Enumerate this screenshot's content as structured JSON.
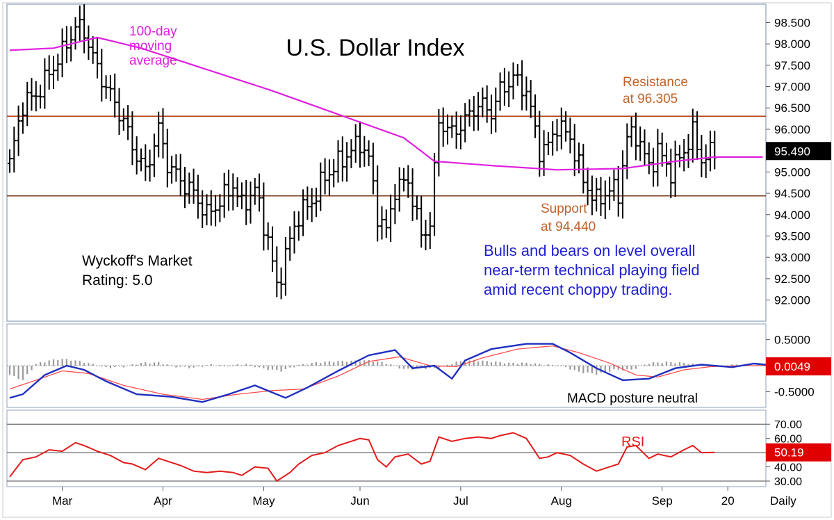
{
  "chart_data": [
    {
      "type": "ohlc",
      "title": "U.S. Dollar Index",
      "ylim": [
        91.7,
        98.8
      ],
      "yticks": [
        "98.500",
        "98.000",
        "97.500",
        "97.000",
        "96.500",
        "96.000",
        "95.500",
        "95.000",
        "94.500",
        "94.000",
        "93.500",
        "93.000",
        "92.500",
        "92.000"
      ],
      "ytick_values": [
        98.5,
        98.0,
        97.5,
        97.0,
        96.5,
        96.0,
        95.5,
        95.0,
        94.5,
        94.0,
        93.5,
        93.0,
        92.5,
        92.0
      ],
      "last_value": 95.49,
      "last_value_label": "95.490",
      "resistance": 96.305,
      "resistance_label": "Resistance\nat 96.305",
      "support": 94.44,
      "support_label": "Support\nat 94.440",
      "ma_label": "100-day\nmoving\naverage",
      "rating_label": "Wyckoff's Market\nRating: 5.0",
      "comment": "Bulls and bears on level overall\nnear-term technical playing field\namid recent choppy trading.",
      "close_anchors": [
        [
          0,
          95.2
        ],
        [
          3,
          96.6
        ],
        [
          6,
          96.8
        ],
        [
          9,
          97.3
        ],
        [
          12,
          97.8
        ],
        [
          15,
          98.4
        ],
        [
          17,
          98.3
        ],
        [
          20,
          97.4
        ],
        [
          23,
          96.8
        ],
        [
          26,
          96.2
        ],
        [
          28,
          95.6
        ],
        [
          31,
          95.0
        ],
        [
          34,
          96.0
        ],
        [
          36,
          95.2
        ],
        [
          39,
          94.8
        ],
        [
          42,
          94.5
        ],
        [
          45,
          94.0
        ],
        [
          48,
          94.3
        ],
        [
          51,
          94.7
        ],
        [
          53,
          94.2
        ],
        [
          56,
          94.6
        ],
        [
          59,
          93.4
        ],
        [
          61,
          92.3
        ],
        [
          64,
          93.4
        ],
        [
          66,
          94.0
        ],
        [
          69,
          94.3
        ],
        [
          72,
          94.9
        ],
        [
          75,
          95.2
        ],
        [
          78,
          95.5
        ],
        [
          80,
          95.7
        ],
        [
          82,
          95.3
        ],
        [
          84,
          94.0
        ],
        [
          86,
          93.6
        ],
        [
          88,
          94.6
        ],
        [
          91,
          94.8
        ],
        [
          94,
          93.5
        ],
        [
          96,
          93.8
        ],
        [
          98,
          96.2
        ],
        [
          101,
          95.9
        ],
        [
          104,
          96.2
        ],
        [
          107,
          96.6
        ],
        [
          110,
          96.4
        ],
        [
          112,
          96.9
        ],
        [
          115,
          97.2
        ],
        [
          118,
          96.9
        ],
        [
          121,
          95.5
        ],
        [
          123,
          95.6
        ],
        [
          125,
          96.1
        ],
        [
          128,
          95.8
        ],
        [
          131,
          94.8
        ],
        [
          134,
          94.3
        ],
        [
          137,
          94.6
        ],
        [
          139,
          94.5
        ],
        [
          141,
          95.8
        ],
        [
          143,
          95.9
        ],
        [
          146,
          95.1
        ],
        [
          148,
          95.5
        ],
        [
          151,
          95.0
        ],
        [
          154,
          95.5
        ],
        [
          156,
          95.9
        ],
        [
          158,
          95.3
        ],
        [
          161,
          95.49
        ]
      ],
      "ma_anchors": [
        [
          0,
          97.85
        ],
        [
          10,
          97.9
        ],
        [
          20,
          98.15
        ],
        [
          30,
          97.9
        ],
        [
          45,
          97.4
        ],
        [
          60,
          96.9
        ],
        [
          75,
          96.35
        ],
        [
          90,
          95.8
        ],
        [
          97,
          95.25
        ],
        [
          110,
          95.15
        ],
        [
          125,
          95.05
        ],
        [
          140,
          95.08
        ],
        [
          152,
          95.25
        ],
        [
          161,
          95.35
        ]
      ],
      "bar_count": 162
    },
    {
      "type": "line",
      "name": "MACD",
      "ylim": [
        -0.75,
        0.75
      ],
      "yticks": [
        "0.5000",
        "-0.5000"
      ],
      "ytick_values": [
        0.5,
        -0.5
      ],
      "last_value_label": "0.0049",
      "annotation": "MACD posture neutral",
      "series": [
        {
          "role": "macd",
          "color": "#1f2fbf",
          "points": [
            [
              0,
              -0.62
            ],
            [
              3,
              -0.55
            ],
            [
              8,
              -0.18
            ],
            [
              13,
              0.0
            ],
            [
              17,
              -0.08
            ],
            [
              22,
              -0.3
            ],
            [
              29,
              -0.55
            ],
            [
              37,
              -0.6
            ],
            [
              44,
              -0.7
            ],
            [
              50,
              -0.55
            ],
            [
              56,
              -0.38
            ],
            [
              63,
              -0.62
            ],
            [
              68,
              -0.42
            ],
            [
              75,
              -0.1
            ],
            [
              82,
              0.2
            ],
            [
              88,
              0.3
            ],
            [
              92,
              -0.05
            ],
            [
              97,
              0.0
            ],
            [
              101,
              -0.25
            ],
            [
              104,
              0.1
            ],
            [
              110,
              0.32
            ],
            [
              118,
              0.42
            ],
            [
              124,
              0.42
            ],
            [
              128,
              0.25
            ],
            [
              134,
              -0.05
            ],
            [
              140,
              -0.28
            ],
            [
              146,
              -0.25
            ],
            [
              152,
              -0.05
            ],
            [
              158,
              0.02
            ],
            [
              165,
              -0.03
            ],
            [
              170,
              0.04
            ],
            [
              175,
              0.0
            ]
          ]
        },
        {
          "role": "signal",
          "color": "#ff4a4a",
          "points": [
            [
              0,
              -0.45
            ],
            [
              6,
              -0.28
            ],
            [
              12,
              -0.1
            ],
            [
              18,
              -0.15
            ],
            [
              26,
              -0.38
            ],
            [
              35,
              -0.55
            ],
            [
              44,
              -0.65
            ],
            [
              52,
              -0.55
            ],
            [
              60,
              -0.48
            ],
            [
              67,
              -0.45
            ],
            [
              75,
              -0.2
            ],
            [
              82,
              0.08
            ],
            [
              89,
              0.17
            ],
            [
              96,
              0.0
            ],
            [
              102,
              -0.02
            ],
            [
              108,
              0.15
            ],
            [
              116,
              0.32
            ],
            [
              124,
              0.38
            ],
            [
              130,
              0.25
            ],
            [
              137,
              0.05
            ],
            [
              143,
              -0.18
            ],
            [
              148,
              -0.22
            ],
            [
              154,
              -0.08
            ],
            [
              160,
              -0.02
            ],
            [
              167,
              0.0
            ],
            [
              175,
              0.0
            ]
          ]
        }
      ],
      "histogram": [
        [
          0,
          -0.18
        ],
        [
          3,
          -0.28
        ],
        [
          6,
          0.03
        ],
        [
          9,
          0.1
        ],
        [
          12,
          0.13
        ],
        [
          15,
          0.1
        ],
        [
          18,
          0.05
        ],
        [
          22,
          -0.04
        ],
        [
          26,
          -0.02
        ],
        [
          30,
          0.05
        ],
        [
          34,
          0.06
        ],
        [
          38,
          -0.02
        ],
        [
          42,
          -0.04
        ],
        [
          46,
          0.02
        ],
        [
          50,
          0.0
        ],
        [
          54,
          0.03
        ],
        [
          58,
          -0.06
        ],
        [
          62,
          -0.1
        ],
        [
          66,
          0.01
        ],
        [
          70,
          0.06
        ],
        [
          74,
          0.08
        ],
        [
          78,
          0.09
        ],
        [
          82,
          0.1
        ],
        [
          86,
          0.05
        ],
        [
          90,
          -0.07
        ],
        [
          94,
          -0.05
        ],
        [
          98,
          -0.05
        ],
        [
          102,
          0.07
        ],
        [
          106,
          0.1
        ],
        [
          110,
          0.08
        ],
        [
          114,
          0.05
        ],
        [
          118,
          0.05
        ],
        [
          122,
          0.02
        ],
        [
          126,
          0.0
        ],
        [
          130,
          -0.12
        ],
        [
          134,
          -0.16
        ],
        [
          138,
          -0.08
        ],
        [
          142,
          -0.08
        ],
        [
          146,
          0.05
        ],
        [
          150,
          0.07
        ],
        [
          154,
          0.05
        ],
        [
          158,
          0.01
        ],
        [
          162,
          -0.01
        ],
        [
          166,
          0.02
        ],
        [
          170,
          0.02
        ],
        [
          175,
          0.0
        ]
      ]
    },
    {
      "type": "line",
      "name": "RSI",
      "ylim": [
        30,
        75
      ],
      "yticks": [
        "70.00",
        "60.00",
        "40.00",
        "30.00"
      ],
      "ytick_values": [
        70,
        60,
        40,
        30
      ],
      "guide_lines": [
        70,
        50,
        30
      ],
      "last_value_label": "50.19",
      "series": [
        {
          "role": "rsi",
          "color": "#e31b1b",
          "points": [
            [
              0,
              33
            ],
            [
              3,
              45
            ],
            [
              6,
              47
            ],
            [
              9,
              52
            ],
            [
              12,
              51
            ],
            [
              15,
              57
            ],
            [
              17,
              55
            ],
            [
              20,
              51
            ],
            [
              23,
              48
            ],
            [
              26,
              43
            ],
            [
              28,
              42
            ],
            [
              31,
              38
            ],
            [
              34,
              46
            ],
            [
              36,
              44
            ],
            [
              39,
              41
            ],
            [
              42,
              37
            ],
            [
              45,
              36
            ],
            [
              48,
              37
            ],
            [
              51,
              36
            ],
            [
              53,
              34
            ],
            [
              56,
              40
            ],
            [
              59,
              39
            ],
            [
              61,
              30
            ],
            [
              64,
              36
            ],
            [
              66,
              42
            ],
            [
              69,
              48
            ],
            [
              72,
              50
            ],
            [
              75,
              55
            ],
            [
              78,
              58
            ],
            [
              80,
              60
            ],
            [
              82,
              59
            ],
            [
              84,
              45
            ],
            [
              86,
              40
            ],
            [
              88,
              47
            ],
            [
              91,
              49
            ],
            [
              94,
              42
            ],
            [
              96,
              44
            ],
            [
              98,
              61
            ],
            [
              101,
              58
            ],
            [
              104,
              60
            ],
            [
              107,
              61
            ],
            [
              110,
              60
            ],
            [
              112,
              62
            ],
            [
              115,
              64
            ],
            [
              118,
              60
            ],
            [
              121,
              46
            ],
            [
              123,
              47
            ],
            [
              125,
              50
            ],
            [
              128,
              48
            ],
            [
              131,
              42
            ],
            [
              134,
              37
            ],
            [
              137,
              40
            ],
            [
              139,
              42
            ],
            [
              141,
              54
            ],
            [
              143,
              55
            ],
            [
              146,
              46
            ],
            [
              148,
              49
            ],
            [
              151,
              47
            ],
            [
              154,
              52
            ],
            [
              156,
              55
            ],
            [
              158,
              50
            ],
            [
              161,
              50.19
            ]
          ]
        }
      ]
    }
  ],
  "x_axis": {
    "labels": [
      "Mar",
      "Apr",
      "May",
      "Jun",
      "Jul",
      "Aug",
      "Sep",
      "20"
    ],
    "label_bar_index": [
      12,
      35,
      58,
      80,
      103,
      126,
      149,
      164
    ],
    "period_label": "Daily"
  },
  "colors": {
    "ohlc": "#000000",
    "ma": "#e020e0",
    "resistance_line": "#b5451b",
    "support_line": "#7a3a1a",
    "resistance_text": "#c0622a",
    "comment_text": "#1f1fd0",
    "flag_bg": "#000000",
    "flag_red": "#e00000",
    "axis_border": "#a8b4c8"
  }
}
